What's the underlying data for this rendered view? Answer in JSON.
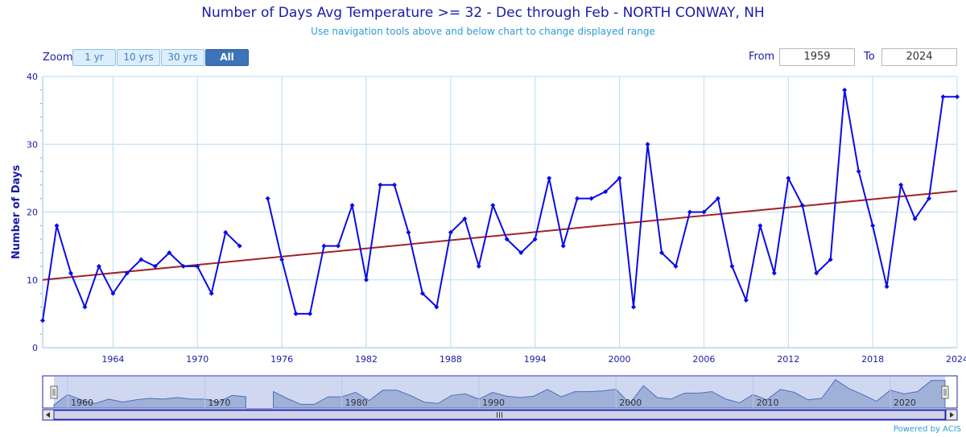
{
  "header": {
    "title": "Number of Days Avg Temperature >= 32 - Dec through Feb - NORTH CONWAY, NH",
    "subtitle": "Use navigation tools above and below chart to change displayed range"
  },
  "zoom": {
    "label": "Zoom",
    "buttons": [
      "1 yr",
      "10 yrs",
      "30 yrs",
      "All"
    ],
    "active": "All"
  },
  "range": {
    "from_label": "From",
    "from_value": "1959",
    "to_label": "To",
    "to_value": "2024"
  },
  "credits": "Powered by ACIS",
  "colors": {
    "series": "#0b0be6",
    "trend": "#a02424",
    "grid": "#b9dcf2",
    "text": "#1a1aa8"
  },
  "chart_data": {
    "type": "line",
    "title": "Number of Days Avg Temperature >= 32 - Dec through Feb - NORTH CONWAY, NH",
    "ylabel": "Number of Days",
    "xlabel": "",
    "xlim": [
      1959,
      2024
    ],
    "ylim": [
      0,
      40
    ],
    "x_ticks": [
      1964,
      1970,
      1976,
      1982,
      1988,
      1994,
      2000,
      2006,
      2012,
      2018,
      2024
    ],
    "y_ticks": [
      0,
      10,
      20,
      30,
      40
    ],
    "grid": true,
    "series": [
      {
        "values": [
          [
            1959,
            4
          ],
          [
            1960,
            18
          ],
          [
            1961,
            11
          ],
          [
            1962,
            6
          ],
          [
            1963,
            12
          ],
          [
            1964,
            8
          ],
          [
            1965,
            11
          ],
          [
            1966,
            13
          ],
          [
            1967,
            12
          ],
          [
            1968,
            14
          ],
          [
            1969,
            12
          ],
          [
            1970,
            12
          ],
          [
            1971,
            8
          ],
          [
            1972,
            17
          ],
          [
            1973,
            15
          ],
          [
            1974,
            null
          ],
          [
            1975,
            22
          ],
          [
            1976,
            13
          ],
          [
            1977,
            5
          ],
          [
            1978,
            5
          ],
          [
            1979,
            15
          ],
          [
            1980,
            15
          ],
          [
            1981,
            21
          ],
          [
            1982,
            10
          ],
          [
            1983,
            24
          ],
          [
            1984,
            24
          ],
          [
            1985,
            17
          ],
          [
            1986,
            8
          ],
          [
            1987,
            6
          ],
          [
            1988,
            17
          ],
          [
            1989,
            19
          ],
          [
            1990,
            12
          ],
          [
            1991,
            21
          ],
          [
            1992,
            16
          ],
          [
            1993,
            14
          ],
          [
            1994,
            16
          ],
          [
            1995,
            25
          ],
          [
            1996,
            15
          ],
          [
            1997,
            22
          ],
          [
            1998,
            22
          ],
          [
            1999,
            23
          ],
          [
            2000,
            25
          ],
          [
            2001,
            6
          ],
          [
            2002,
            30
          ],
          [
            2003,
            14
          ],
          [
            2004,
            12
          ],
          [
            2005,
            20
          ],
          [
            2006,
            20
          ],
          [
            2007,
            22
          ],
          [
            2008,
            12
          ],
          [
            2009,
            7
          ],
          [
            2010,
            18
          ],
          [
            2011,
            11
          ],
          [
            2012,
            25
          ],
          [
            2013,
            21
          ],
          [
            2014,
            11
          ],
          [
            2015,
            13
          ],
          [
            2016,
            38
          ],
          [
            2017,
            26
          ],
          [
            2018,
            18
          ],
          [
            2019,
            9
          ],
          [
            2020,
            24
          ],
          [
            2021,
            19
          ],
          [
            2022,
            22
          ],
          [
            2023,
            37
          ],
          [
            2024,
            37
          ]
        ]
      }
    ],
    "trend": {
      "start": [
        1959,
        10.0
      ],
      "end": [
        2024,
        23.1
      ]
    },
    "navigator": {
      "x_ticks": [
        1960,
        1970,
        1980,
        1990,
        2000,
        2010,
        2020
      ],
      "range": [
        1959,
        2024
      ]
    }
  }
}
